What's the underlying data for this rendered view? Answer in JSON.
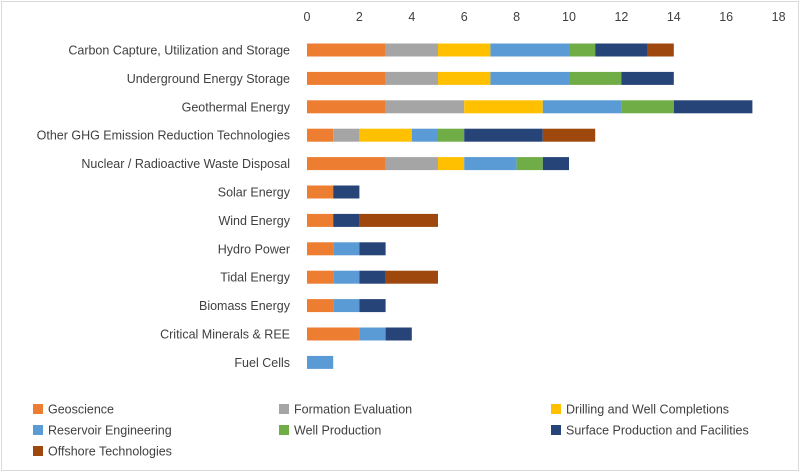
{
  "chart_data": {
    "type": "bar",
    "orientation": "horizontal",
    "stacked": true,
    "title": "",
    "xlabel": "",
    "ylabel": "",
    "xlim": [
      0,
      18
    ],
    "xticks": [
      0,
      2,
      4,
      6,
      8,
      10,
      12,
      14,
      16,
      18
    ],
    "grid": false,
    "legend_position": "bottom",
    "categories": [
      "Carbon Capture, Utilization and Storage",
      "Underground Energy Storage",
      "Geothermal Energy",
      "Other GHG Emission Reduction Technologies",
      "Nuclear / Radioactive Waste Disposal",
      "Solar Energy",
      "Wind Energy",
      "Hydro Power",
      "Tidal Energy",
      "Biomass Energy",
      "Critical Minerals & REE",
      "Fuel Cells"
    ],
    "series": [
      {
        "name": "Geoscience",
        "color": "#ed7d31",
        "values": [
          3,
          3,
          3,
          1,
          3,
          1,
          1,
          1,
          1,
          1,
          2,
          0
        ]
      },
      {
        "name": "Formation Evaluation",
        "color": "#a5a5a5",
        "values": [
          2,
          2,
          3,
          1,
          2,
          0,
          0,
          0,
          0,
          0,
          0,
          0
        ]
      },
      {
        "name": "Drilling and Well Completions",
        "color": "#ffc000",
        "values": [
          2,
          2,
          3,
          2,
          1,
          0,
          0,
          0,
          0,
          0,
          0,
          0
        ]
      },
      {
        "name": "Reservoir Engineering",
        "color": "#5b9bd5",
        "values": [
          3,
          3,
          3,
          1,
          2,
          0,
          0,
          1,
          1,
          1,
          1,
          1
        ]
      },
      {
        "name": "Well Production",
        "color": "#70ad47",
        "values": [
          1,
          2,
          2,
          1,
          1,
          0,
          0,
          0,
          0,
          0,
          0,
          0
        ]
      },
      {
        "name": "Surface Production and Facilities",
        "color": "#264478",
        "values": [
          2,
          2,
          3,
          3,
          1,
          1,
          1,
          1,
          1,
          1,
          1,
          0
        ]
      },
      {
        "name": "Offshore Technologies",
        "color": "#9e480e",
        "values": [
          1,
          0,
          0,
          2,
          0,
          0,
          3,
          0,
          2,
          0,
          0,
          0
        ]
      }
    ]
  }
}
